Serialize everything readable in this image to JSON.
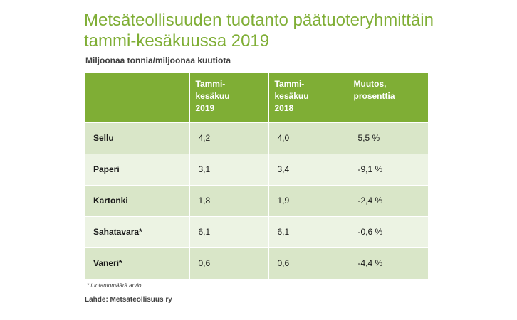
{
  "title": {
    "line1": "Metsäteollisuuden tuotanto päätuoteryhmittäin",
    "line2": "tammi-kesäkuussa 2019"
  },
  "subtitle": "Miljoonaa tonnia/miljoonaa kuutiota",
  "table": {
    "headers": [
      "",
      "Tammi-\nkesäkuu\n2019",
      "Tammi-\nkesäkuu\n2018",
      "Muutos,\nprosenttia"
    ],
    "rows": [
      [
        "Sellu",
        "4,2",
        "4,0",
        "5,5 %"
      ],
      [
        "Paperi",
        "3,1",
        "3,4",
        "-9,1 %"
      ],
      [
        "Kartonki",
        "1,8",
        "1,9",
        "-2,4 %"
      ],
      [
        "Sahatavara*",
        "6,1",
        "6,1",
        "-0,6 %"
      ],
      [
        "Vaneri*",
        "0,6",
        "0,6",
        "-4,4 %"
      ]
    ]
  },
  "footnote": "* tuotantomäärä arvio",
  "source": "Lähde: Metsäteollisuus ry",
  "colors": {
    "accent": "#7fae35",
    "row_dark": "#d9e6c8",
    "row_light": "#ecf3e3"
  }
}
